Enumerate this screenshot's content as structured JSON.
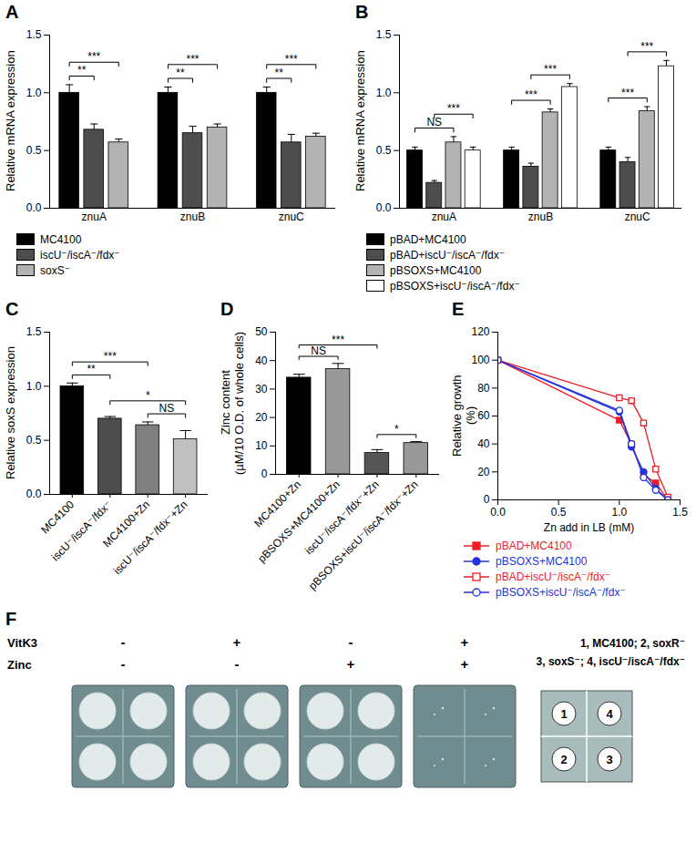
{
  "chart_data": [
    {
      "type": "bar",
      "title": "A",
      "categories": [
        "znuA",
        "znuB",
        "znuC"
      ],
      "ylabel": "Relative mRNA expression",
      "ylim": [
        0,
        1.5
      ],
      "yticks": [
        {
          "value": 0,
          "label": "0.0"
        },
        {
          "value": 0.5,
          "label": "0.5"
        },
        {
          "value": 1,
          "label": "1.0"
        },
        {
          "value": 1.5,
          "label": "1.5"
        }
      ],
      "legend": "bottom",
      "series": [
        {
          "name": "MC4100",
          "color": "#000000",
          "values": [
            1.0,
            1.0,
            1.0
          ],
          "errors": [
            0.07,
            0.05,
            0.05
          ]
        },
        {
          "name": "iscU⁻/iscA⁻/fdx⁻",
          "color": "#4d4d4d",
          "values": [
            0.68,
            0.65,
            0.57
          ],
          "errors": [
            0.05,
            0.06,
            0.07
          ]
        },
        {
          "name": "soxS⁻",
          "color": "#b3b3b3",
          "values": [
            0.57,
            0.7,
            0.62
          ],
          "errors": [
            0.03,
            0.03,
            0.03
          ]
        }
      ],
      "annotations": [
        {
          "category": "znuA",
          "from": "MC4100",
          "to": "iscU⁻/iscA⁻/fdx⁻",
          "label": "**"
        },
        {
          "category": "znuA",
          "from": "MC4100",
          "to": "soxS⁻",
          "label": "***"
        },
        {
          "category": "znuB",
          "from": "MC4100",
          "to": "iscU⁻/iscA⁻/fdx⁻",
          "label": "**"
        },
        {
          "category": "znuB",
          "from": "MC4100",
          "to": "soxS⁻",
          "label": "***"
        },
        {
          "category": "znuC",
          "from": "MC4100",
          "to": "iscU⁻/iscA⁻/fdx⁻",
          "label": "**"
        },
        {
          "category": "znuC",
          "from": "MC4100",
          "to": "soxS⁻",
          "label": "***"
        }
      ]
    },
    {
      "type": "bar",
      "title": "B",
      "categories": [
        "znuA",
        "znuB",
        "znuC"
      ],
      "ylabel": "Relative mRNA expression",
      "ylim": [
        0,
        1.5
      ],
      "yticks": [
        {
          "value": 0,
          "label": "0.0"
        },
        {
          "value": 0.5,
          "label": "0.5"
        },
        {
          "value": 1,
          "label": "1.0"
        },
        {
          "value": 1.5,
          "label": "1.5"
        }
      ],
      "legend": "bottom",
      "series": [
        {
          "name": "pBAD+MC4100",
          "color": "#000000",
          "values": [
            0.5,
            0.5,
            0.5
          ],
          "errors": [
            0.03,
            0.03,
            0.03
          ]
        },
        {
          "name": "pBAD+iscU⁻/iscA⁻/fdx⁻",
          "color": "#4d4d4d",
          "values": [
            0.22,
            0.36,
            0.4
          ],
          "errors": [
            0.02,
            0.03,
            0.04
          ]
        },
        {
          "name": "pBSOXS+MC4100",
          "color": "#b3b3b3",
          "values": [
            0.57,
            0.83,
            0.84
          ],
          "errors": [
            0.05,
            0.03,
            0.04
          ]
        },
        {
          "name": "pBSOXS+iscU⁻/iscA⁻/fdx⁻",
          "color": "#ffffff",
          "values": [
            0.5,
            1.05,
            1.23
          ],
          "errors": [
            0.03,
            0.03,
            0.05
          ]
        }
      ],
      "annotations": [
        {
          "category": "znuA",
          "from": "pBAD+MC4100",
          "to": "pBSOXS+MC4100",
          "label": "NS"
        },
        {
          "category": "znuA",
          "from": "pBAD+iscU⁻/iscA⁻/fdx⁻",
          "to": "pBSOXS+iscU⁻/iscA⁻/fdx⁻",
          "label": "***"
        },
        {
          "category": "znuB",
          "from": "pBAD+MC4100",
          "to": "pBSOXS+MC4100",
          "label": "***"
        },
        {
          "category": "znuB",
          "from": "pBAD+iscU⁻/iscA⁻/fdx⁻",
          "to": "pBSOXS+iscU⁻/iscA⁻/fdx⁻",
          "label": "***"
        },
        {
          "category": "znuC",
          "from": "pBAD+MC4100",
          "to": "pBSOXS+MC4100",
          "label": "***"
        },
        {
          "category": "znuC",
          "from": "pBAD+iscU⁻/iscA⁻/fdx⁻",
          "to": "pBSOXS+iscU⁻/iscA⁻/fdx⁻",
          "label": "***"
        }
      ]
    },
    {
      "type": "bar",
      "title": "C",
      "categories": [
        "MC4100",
        "iscU⁻/iscA⁻/fdx⁻",
        "MC4100+Zn",
        "iscU⁻/iscA⁻/fdx⁻+Zn"
      ],
      "values": [
        1.0,
        0.7,
        0.64,
        0.51
      ],
      "errors": [
        0.03,
        0.02,
        0.03,
        0.08
      ],
      "colors": [
        "#000000",
        "#4d4d4d",
        "#808080",
        "#c0c0c0"
      ],
      "ylabel": "Relative soxS expression",
      "ylim": [
        0,
        1.5
      ],
      "yticks": [
        {
          "value": 0,
          "label": "0.0"
        },
        {
          "value": 0.5,
          "label": "0.5"
        },
        {
          "value": 1,
          "label": "1.0"
        },
        {
          "value": 1.5,
          "label": "1.5"
        }
      ],
      "annotations": [
        {
          "from": "MC4100",
          "to": "iscU⁻/iscA⁻/fdx⁻",
          "label": "**"
        },
        {
          "from": "MC4100",
          "to": "MC4100+Zn",
          "label": "***"
        },
        {
          "from": "MC4100+Zn",
          "to": "iscU⁻/iscA⁻/fdx⁻+Zn",
          "label": "NS"
        },
        {
          "from": "iscU⁻/iscA⁻/fdx⁻",
          "to": "iscU⁻/iscA⁻/fdx⁻+Zn",
          "label": "*"
        }
      ]
    },
    {
      "type": "bar",
      "title": "D",
      "categories": [
        "MC4100+Zn",
        "pBSOXS+MC4100+Zn",
        "iscU⁻/iscA⁻/fdx⁻+Zn",
        "pBSOXS+iscU⁻/iscA⁻/fdx⁻+Zn"
      ],
      "values": [
        34,
        37,
        7.5,
        11
      ],
      "errors": [
        1.2,
        2,
        1.2,
        0.5
      ],
      "colors": [
        "#000000",
        "#999999",
        "#555555",
        "#999999"
      ],
      "ylabel": "Zinc content (µM/10 O.D. of whole cells)",
      "ylim": [
        0,
        50
      ],
      "yticks": [
        0,
        10,
        20,
        30,
        40,
        50
      ],
      "annotations": [
        {
          "from": "MC4100+Zn",
          "to": "pBSOXS+MC4100+Zn",
          "label": "NS"
        },
        {
          "from": "MC4100+Zn",
          "to": "iscU⁻/iscA⁻/fdx⁻+Zn",
          "label": "***"
        },
        {
          "from": "iscU⁻/iscA⁻/fdx⁻+Zn",
          "to": "pBSOXS+iscU⁻/iscA⁻/fdx⁻+Zn",
          "label": "*"
        }
      ]
    },
    {
      "type": "line",
      "title": "E",
      "xlabel": "Zn add in LB (mM)",
      "ylabel": "Relative growth (%)",
      "x": [
        0,
        1.0,
        1.1,
        1.2,
        1.3,
        1.4
      ],
      "xlim": [
        0,
        1.5
      ],
      "xticks": [
        {
          "value": 0,
          "label": "0.0"
        },
        {
          "value": 0.5,
          "label": "0.5"
        },
        {
          "value": 1,
          "label": "1.0"
        },
        {
          "value": 1.5,
          "label": "1.5"
        }
      ],
      "ylim": [
        0,
        120
      ],
      "yticks": [
        0,
        20,
        40,
        60,
        80,
        100,
        120
      ],
      "legend": "bottom",
      "series": [
        {
          "name": "pBAD+MC4100",
          "color": "#ee1c25",
          "marker": "square",
          "values": [
            100,
            57,
            40,
            18,
            12,
            0
          ]
        },
        {
          "name": "pBSOXS+MC4100",
          "color": "#2233dd",
          "marker": "circle",
          "values": [
            100,
            63,
            38,
            20,
            8,
            0
          ]
        },
        {
          "name": "pBAD+iscU⁻/iscA⁻/fdx⁻",
          "color": "#ee1c25",
          "marker": "open square",
          "values": [
            100,
            73,
            71,
            55,
            22,
            2
          ]
        },
        {
          "name": "pBSOXS+iscU⁻/iscA⁻/fdx⁻",
          "color": "#2233dd",
          "marker": "open circle",
          "values": [
            100,
            64,
            40,
            16,
            7,
            0
          ]
        }
      ]
    },
    {
      "type": "plates",
      "title": "F",
      "rows": [
        {
          "label": "VitK3",
          "values": [
            "-",
            "+",
            "-",
            "+"
          ]
        },
        {
          "label": "Zinc",
          "values": [
            "-",
            "-",
            "+",
            "+"
          ]
        }
      ],
      "key": [
        "1, MC4100; 2, soxR⁻",
        "3, soxS⁻; 4, iscU⁻/iscA⁻/fdx⁻"
      ],
      "quadrants": [
        [
          1,
          4
        ],
        [
          2,
          3
        ]
      ],
      "growth": [
        [
          true,
          true,
          true,
          true
        ],
        [
          true,
          true,
          true,
          true
        ],
        [
          true,
          true,
          true,
          true
        ],
        [
          false,
          false,
          false,
          false
        ]
      ]
    }
  ]
}
